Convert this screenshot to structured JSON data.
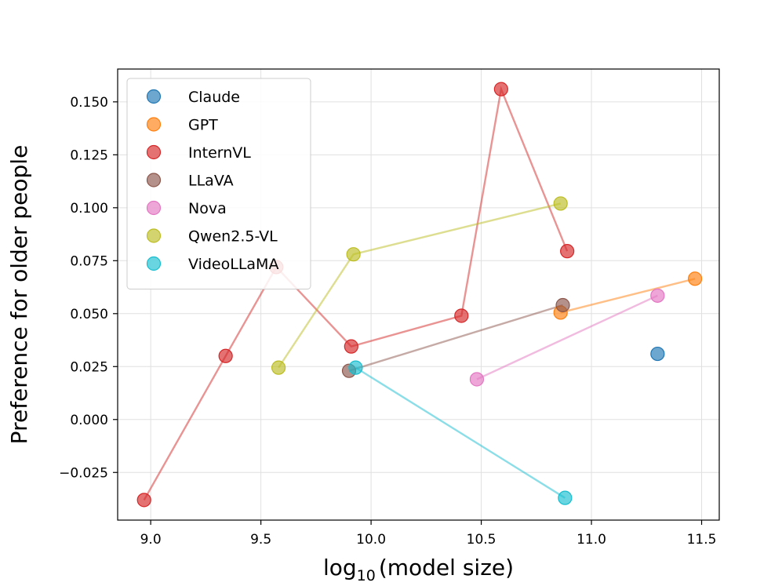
{
  "chart_data": {
    "type": "scatter",
    "title": "",
    "xlabel_main": "log",
    "xlabel_sub": "10",
    "xlabel_rest": "(model size)",
    "ylabel": "Preference for older people",
    "xlim": [
      8.85,
      11.58
    ],
    "ylim": [
      -0.0475,
      0.1655
    ],
    "xticks": [
      9.0,
      9.5,
      10.0,
      10.5,
      11.0,
      11.5
    ],
    "xtick_labels": [
      "9.0",
      "9.5",
      "10.0",
      "10.5",
      "11.0",
      "11.5"
    ],
    "yticks": [
      -0.025,
      0.0,
      0.025,
      0.05,
      0.075,
      0.1,
      0.125,
      0.15
    ],
    "ytick_labels": [
      "−0.025",
      "0.000",
      "0.025",
      "0.050",
      "0.075",
      "0.100",
      "0.125",
      "0.150"
    ],
    "grid": true,
    "legend_position": "upper-left",
    "series": [
      {
        "name": "Claude",
        "color": "#1f77b4",
        "connected": false,
        "x": [
          11.3
        ],
        "y": [
          0.031
        ]
      },
      {
        "name": "GPT",
        "color": "#ff7f0e",
        "connected": true,
        "x": [
          10.86,
          11.47
        ],
        "y": [
          0.0505,
          0.0665
        ]
      },
      {
        "name": "InternVL",
        "color": "#d62728",
        "connected": true,
        "x": [
          8.97,
          9.34,
          9.57,
          9.91,
          10.41,
          10.59,
          10.89
        ],
        "y": [
          -0.038,
          0.03,
          0.072,
          0.0345,
          0.049,
          0.156,
          0.0795
        ]
      },
      {
        "name": "LLaVA",
        "color": "#8c564b",
        "connected": true,
        "x": [
          9.9,
          10.87
        ],
        "y": [
          0.023,
          0.054
        ]
      },
      {
        "name": "Nova",
        "color": "#e377c2",
        "connected": true,
        "x": [
          10.48,
          11.3
        ],
        "y": [
          0.019,
          0.0585
        ]
      },
      {
        "name": "Qwen2.5-VL",
        "color": "#bcbd22",
        "connected": true,
        "x": [
          9.58,
          9.92,
          10.86
        ],
        "y": [
          0.0245,
          0.078,
          0.102
        ]
      },
      {
        "name": "VideoLLaMA",
        "color": "#17becf",
        "connected": true,
        "x": [
          9.93,
          10.88
        ],
        "y": [
          0.0245,
          -0.037
        ]
      }
    ]
  }
}
